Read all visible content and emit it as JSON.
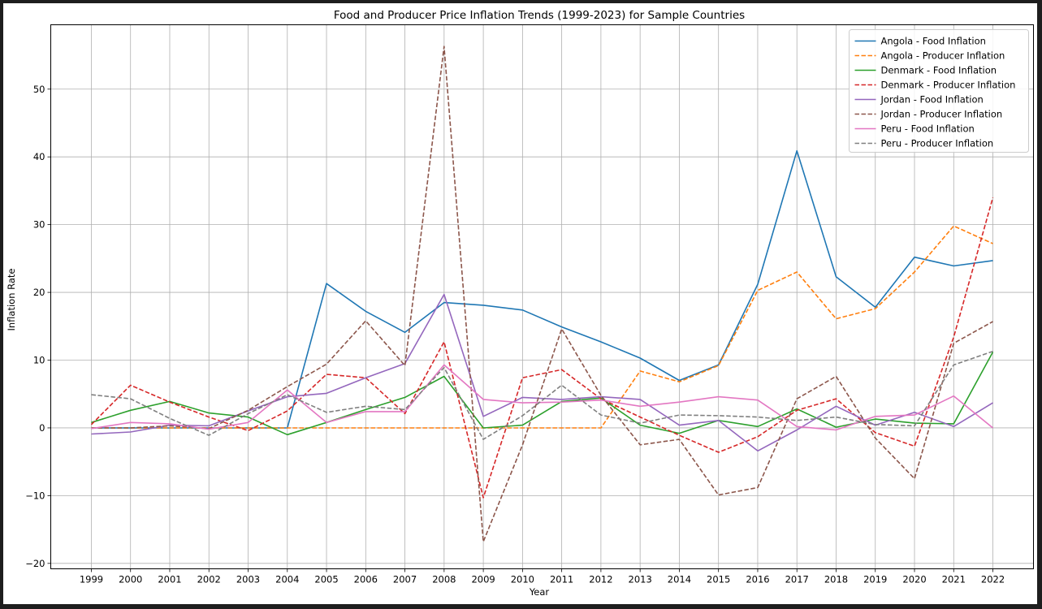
{
  "chart_data": {
    "type": "line",
    "title": "Food and Producer Price Inflation Trends (1999-2023) for Sample Countries",
    "xlabel": "Year",
    "ylabel": "Inflation Rate",
    "x": [
      1999,
      2000,
      2001,
      2002,
      2003,
      2004,
      2005,
      2006,
      2007,
      2008,
      2009,
      2010,
      2011,
      2012,
      2013,
      2014,
      2015,
      2016,
      2017,
      2018,
      2019,
      2020,
      2021,
      2022
    ],
    "x_tick_labels": [
      "1999",
      "2000",
      "2001",
      "2002",
      "2003",
      "2004",
      "2005",
      "2006",
      "2007",
      "2008",
      "2009",
      "2010",
      "2011",
      "2012",
      "2013",
      "2014",
      "2015",
      "2016",
      "2017",
      "2018",
      "2019",
      "2020",
      "2021",
      "2022"
    ],
    "ylim": [
      -20,
      60
    ],
    "y_ticks": [
      -20,
      -10,
      0,
      10,
      20,
      30,
      40,
      50
    ],
    "grid": true,
    "legend_position": "top-right",
    "series": [
      {
        "name": "Angola - Food Inflation",
        "color": "#1f77b4",
        "style": "solid",
        "values": [
          0,
          0,
          0,
          0,
          0,
          0,
          21.3,
          17.2,
          14.1,
          18.5,
          18.1,
          17.4,
          14.9,
          12.7,
          10.3,
          7.0,
          9.3,
          21.2,
          40.9,
          22.3,
          17.8,
          25.2,
          23.9,
          24.7
        ]
      },
      {
        "name": "Angola - Producer Inflation",
        "color": "#ff7f0e",
        "style": "dashed",
        "values": [
          0,
          0,
          0,
          0,
          0,
          0,
          0,
          0,
          0,
          0,
          0,
          0,
          0,
          0,
          8.4,
          6.8,
          9.2,
          20.3,
          23.0,
          16.1,
          17.6,
          23.0,
          29.8,
          27.2
        ]
      },
      {
        "name": "Denmark - Food Inflation",
        "color": "#2ca02c",
        "style": "solid",
        "values": [
          0.8,
          2.6,
          3.9,
          2.2,
          1.6,
          -1.0,
          0.8,
          2.7,
          4.5,
          7.6,
          0.0,
          0.4,
          3.9,
          4.4,
          0.4,
          -0.8,
          1.1,
          0.2,
          2.8,
          0.1,
          1.3,
          0.7,
          0.6,
          11.2
        ]
      },
      {
        "name": "Denmark - Producer Inflation",
        "color": "#d62728",
        "style": "dashed",
        "values": [
          0.5,
          6.3,
          3.8,
          1.6,
          -0.4,
          2.5,
          7.9,
          7.4,
          2.1,
          12.7,
          -10.3,
          7.4,
          8.6,
          4.3,
          1.6,
          -1.1,
          -3.6,
          -1.3,
          2.6,
          4.3,
          -0.7,
          -2.7,
          13.4,
          34.0
        ]
      },
      {
        "name": "Jordan - Food Inflation",
        "color": "#9467bd",
        "style": "solid",
        "values": [
          -0.9,
          -0.6,
          0.4,
          0.3,
          2.5,
          4.6,
          5.1,
          7.4,
          9.5,
          19.7,
          1.7,
          4.5,
          4.2,
          4.6,
          4.2,
          0.4,
          1.1,
          -3.4,
          -0.3,
          3.2,
          0.4,
          2.3,
          0.2,
          3.7
        ]
      },
      {
        "name": "Jordan - Producer Inflation",
        "color": "#8c564b",
        "style": "dashed",
        "values": [
          0,
          0,
          0.3,
          -0.1,
          2.6,
          6.1,
          9.4,
          15.8,
          9.2,
          56.3,
          -16.8,
          -2.5,
          14.6,
          4.8,
          -2.5,
          -1.7,
          -9.9,
          -8.8,
          4.3,
          7.6,
          -1.5,
          -7.5,
          12.5,
          15.7
        ]
      },
      {
        "name": "Peru - Food Inflation",
        "color": "#e377c2",
        "style": "solid",
        "values": [
          -0.1,
          0.8,
          0.6,
          -0.2,
          0.8,
          5.6,
          0.8,
          2.4,
          2.4,
          9.3,
          4.2,
          3.7,
          3.8,
          4.1,
          3.2,
          3.8,
          4.6,
          4.1,
          0.2,
          -0.3,
          1.7,
          1.9,
          4.7,
          0.0
        ]
      },
      {
        "name": "Peru - Producer Inflation",
        "color": "#7f7f7f",
        "style": "dashed",
        "values": [
          4.9,
          4.3,
          1.4,
          -1.1,
          2.1,
          4.9,
          2.3,
          3.2,
          2.7,
          8.9,
          -1.7,
          1.8,
          6.3,
          1.9,
          0.7,
          1.9,
          1.8,
          1.6,
          1.1,
          1.6,
          0.5,
          0.3,
          9.3,
          11.3
        ]
      }
    ]
  }
}
